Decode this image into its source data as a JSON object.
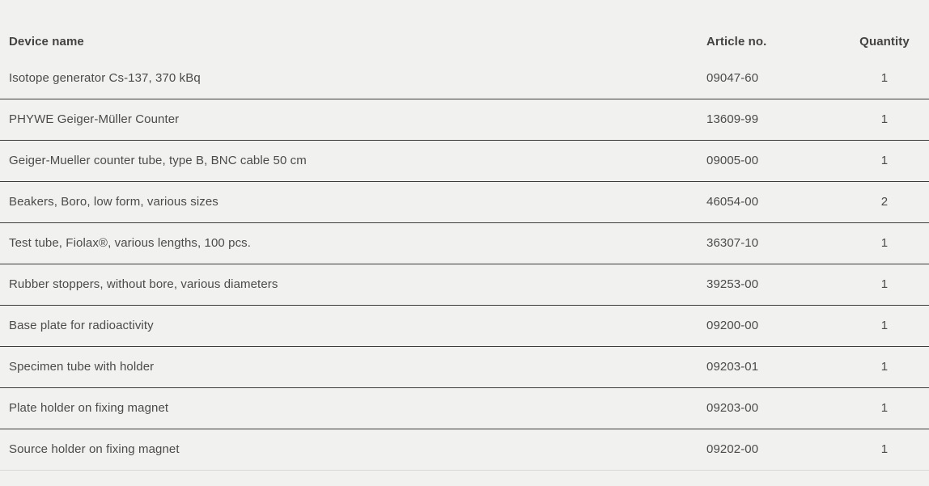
{
  "table": {
    "columns": [
      {
        "key": "device",
        "label": "Device name"
      },
      {
        "key": "article",
        "label": "Article no."
      },
      {
        "key": "quantity",
        "label": "Quantity"
      }
    ],
    "rows": [
      {
        "device": "Isotope generator Cs-137, 370 kBq",
        "article": "09047-60",
        "quantity": "1"
      },
      {
        "device": "PHYWE Geiger-Müller Counter",
        "article": "13609-99",
        "quantity": "1"
      },
      {
        "device": "Geiger-Mueller counter tube, type B, BNC cable 50 cm",
        "article": "09005-00",
        "quantity": "1"
      },
      {
        "device": "Beakers, Boro, low form, various sizes",
        "article": "46054-00",
        "quantity": "2"
      },
      {
        "device": "Test tube, Fiolax®, various lengths, 100 pcs.",
        "article": "36307-10",
        "quantity": "1"
      },
      {
        "device": "Rubber stoppers, without bore, various diameters",
        "article": "39253-00",
        "quantity": "1"
      },
      {
        "device": "Base plate for radioactivity",
        "article": "09200-00",
        "quantity": "1"
      },
      {
        "device": "Specimen tube with holder",
        "article": "09203-01",
        "quantity": "1"
      },
      {
        "device": "Plate holder on fixing magnet",
        "article": "09203-00",
        "quantity": "1"
      },
      {
        "device": "Source holder on fixing magnet",
        "article": "09202-00",
        "quantity": "1"
      }
    ]
  },
  "colors": {
    "background": "#f1f1ef",
    "text": "#4c4b49",
    "header_text": "#444341",
    "divider": "#3c3c3a",
    "last_divider": "#d8d8d6"
  }
}
